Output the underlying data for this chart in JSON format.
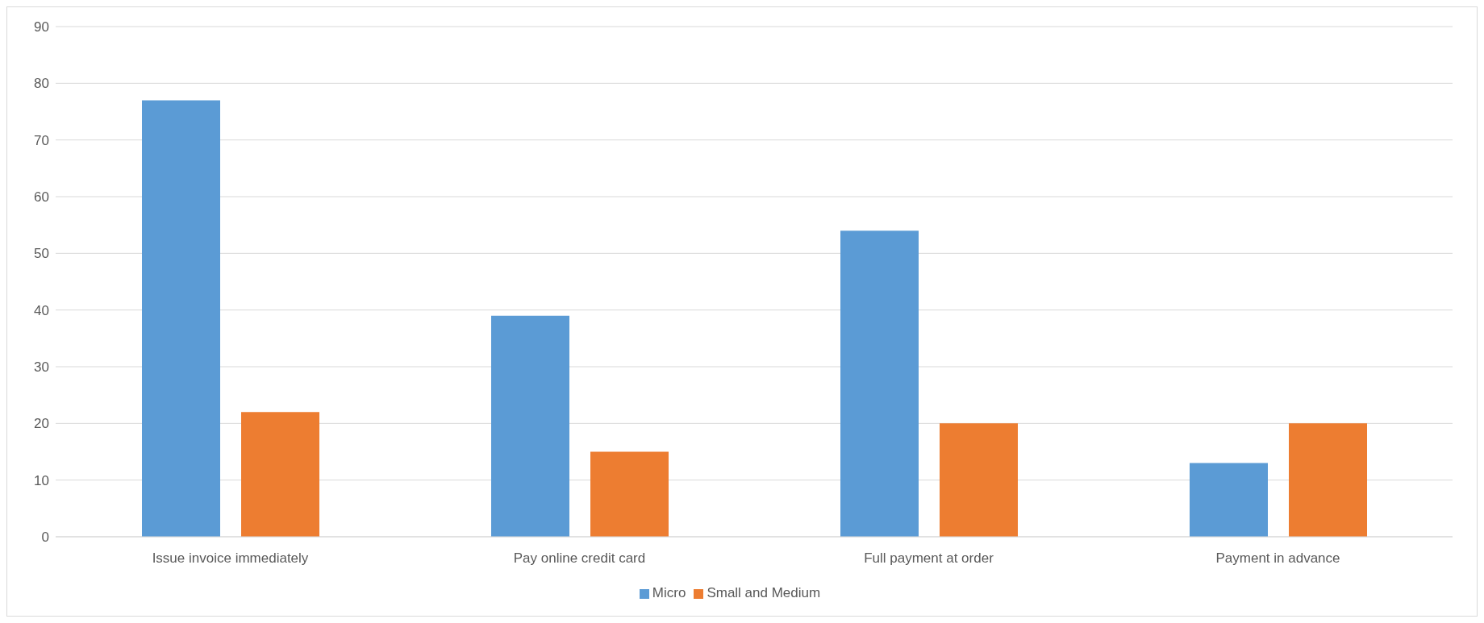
{
  "chart_data": {
    "type": "bar",
    "categories": [
      "Issue invoice immediately",
      "Pay online credit card",
      "Full payment at order",
      "Payment in advance"
    ],
    "series": [
      {
        "name": "Micro",
        "color": "#5b9bd5",
        "values": [
          77,
          39,
          54,
          13
        ]
      },
      {
        "name": "Small and Medium",
        "color": "#ed7d31",
        "values": [
          22,
          15,
          20,
          20
        ]
      }
    ],
    "ylim": [
      0,
      90
    ],
    "yticks": [
      0,
      10,
      20,
      30,
      40,
      50,
      60,
      70,
      80,
      90
    ],
    "grid": "y",
    "legend": "bottom"
  }
}
